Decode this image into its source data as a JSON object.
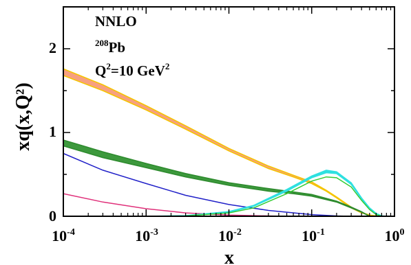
{
  "chart_data": {
    "type": "line",
    "title": "",
    "xlabel": "x",
    "ylabel": "xq(x,Q²)",
    "xscale": "log",
    "xlim": [
      0.0001,
      1
    ],
    "ylim": [
      0,
      2.5
    ],
    "grid": false,
    "x_tick_labels": [
      {
        "base": "10",
        "exp": "-4",
        "value": 0.0001
      },
      {
        "base": "10",
        "exp": "-3",
        "value": 0.001
      },
      {
        "base": "10",
        "exp": "-2",
        "value": 0.01
      },
      {
        "base": "10",
        "exp": "-1",
        "value": 0.1
      },
      {
        "base": "10",
        "exp": "0",
        "value": 1
      }
    ],
    "y_ticks": [
      0,
      1,
      2
    ],
    "y_tick_labels": [
      "0",
      "1",
      "2"
    ],
    "annotations": {
      "order": "NNLO",
      "nucleus_mass": "208",
      "nucleus_symbol": "Pb",
      "scale_prefix": "Q",
      "scale_sup1": "2",
      "scale_mid": "=10 GeV",
      "scale_sup2": "2"
    },
    "series": [
      {
        "color": "#f5c400",
        "band_color": "#f7a080",
        "x": [
          0.0001,
          0.0003,
          0.001,
          0.003,
          0.01,
          0.03,
          0.06,
          0.1,
          0.15,
          0.2,
          0.3,
          0.4,
          0.5,
          0.6,
          0.7
        ],
        "lower": [
          1.68,
          1.5,
          1.27,
          1.04,
          0.78,
          0.57,
          0.47,
          0.39,
          0.3,
          0.22,
          0.1,
          0.04,
          0.012,
          0.003,
          0.0
        ],
        "upper": [
          1.76,
          1.57,
          1.32,
          1.08,
          0.81,
          0.6,
          0.49,
          0.41,
          0.31,
          0.23,
          0.11,
          0.045,
          0.015,
          0.004,
          0.0
        ]
      },
      {
        "color": "#2e8b2e",
        "band_color": "#3d993d",
        "x": [
          0.0001,
          0.0003,
          0.001,
          0.003,
          0.01,
          0.03,
          0.06,
          0.1,
          0.2,
          0.3,
          0.4,
          0.5
        ],
        "lower": [
          0.84,
          0.7,
          0.58,
          0.47,
          0.37,
          0.3,
          0.27,
          0.24,
          0.17,
          0.1,
          0.05,
          0.0
        ],
        "upper": [
          0.91,
          0.77,
          0.63,
          0.51,
          0.4,
          0.33,
          0.29,
          0.26,
          0.18,
          0.11,
          0.055,
          0.0
        ]
      },
      {
        "color": "#2020c8",
        "x": [
          0.0001,
          0.0003,
          0.001,
          0.003,
          0.01,
          0.03,
          0.1,
          0.2,
          0.3
        ],
        "y": [
          0.75,
          0.55,
          0.39,
          0.25,
          0.14,
          0.07,
          0.02,
          0.004,
          0.0
        ]
      },
      {
        "color": "#e0307a",
        "x": [
          0.0001,
          0.0003,
          0.001,
          0.003,
          0.01,
          0.03,
          0.05
        ],
        "y": [
          0.27,
          0.17,
          0.09,
          0.04,
          0.015,
          0.004,
          0.0
        ]
      },
      {
        "color": "#2ee0e0",
        "x": [
          0.0001,
          0.001,
          0.003,
          0.01,
          0.02,
          0.05,
          0.1,
          0.15,
          0.2,
          0.3,
          0.4,
          0.5,
          0.6,
          0.7,
          0.8
        ],
        "lower": [
          0.0,
          0.0,
          0.006,
          0.05,
          0.12,
          0.3,
          0.46,
          0.52,
          0.51,
          0.38,
          0.21,
          0.09,
          0.03,
          0.004,
          0.0
        ],
        "upper": [
          0.0,
          0.0,
          0.008,
          0.056,
          0.13,
          0.32,
          0.48,
          0.55,
          0.53,
          0.4,
          0.22,
          0.1,
          0.035,
          0.006,
          0.0
        ]
      },
      {
        "color": "#33cc33",
        "x": [
          0.0001,
          0.001,
          0.003,
          0.01,
          0.02,
          0.05,
          0.1,
          0.15,
          0.2,
          0.3,
          0.4,
          0.5,
          0.6,
          0.7
        ],
        "y": [
          0.0,
          0.0,
          0.004,
          0.04,
          0.1,
          0.27,
          0.42,
          0.47,
          0.46,
          0.35,
          0.19,
          0.08,
          0.02,
          0.0
        ]
      }
    ]
  }
}
